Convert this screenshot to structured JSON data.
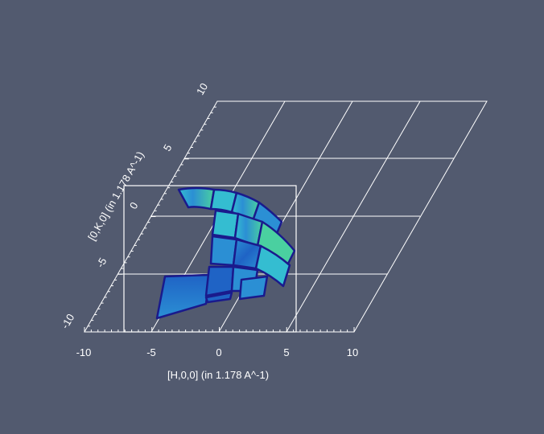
{
  "colors": {
    "background": "#525a6f",
    "grid": "#ffffff",
    "roi_box": "#ffffff",
    "tile_outline": "#1a1a8c",
    "colormap": [
      "#10379e",
      "#1f63c5",
      "#2b8fd4",
      "#34bdd1",
      "#4ad0a0",
      "#8fd867",
      "#e0e04c"
    ]
  },
  "chart_data": {
    "type": "heatmap",
    "title": "",
    "xlabel": "[H,0,0] (in 1.178 A^-1)",
    "ylabel": "[0,K,0] (in 1.178 A^-1)",
    "xlim": [
      -10,
      10
    ],
    "ylim": [
      -10,
      10
    ],
    "x_ticks": [
      "-10",
      "-5",
      "0",
      "5",
      "10"
    ],
    "y_ticks": [
      "-10",
      "-5",
      "0",
      "5",
      "10"
    ],
    "grid": true,
    "tiles": [
      {
        "row": "top",
        "count": 4
      },
      {
        "row": "upper-middle",
        "count": 3
      },
      {
        "row": "lower-middle",
        "count": 3
      },
      {
        "row": "bottom",
        "count": 5
      }
    ]
  }
}
